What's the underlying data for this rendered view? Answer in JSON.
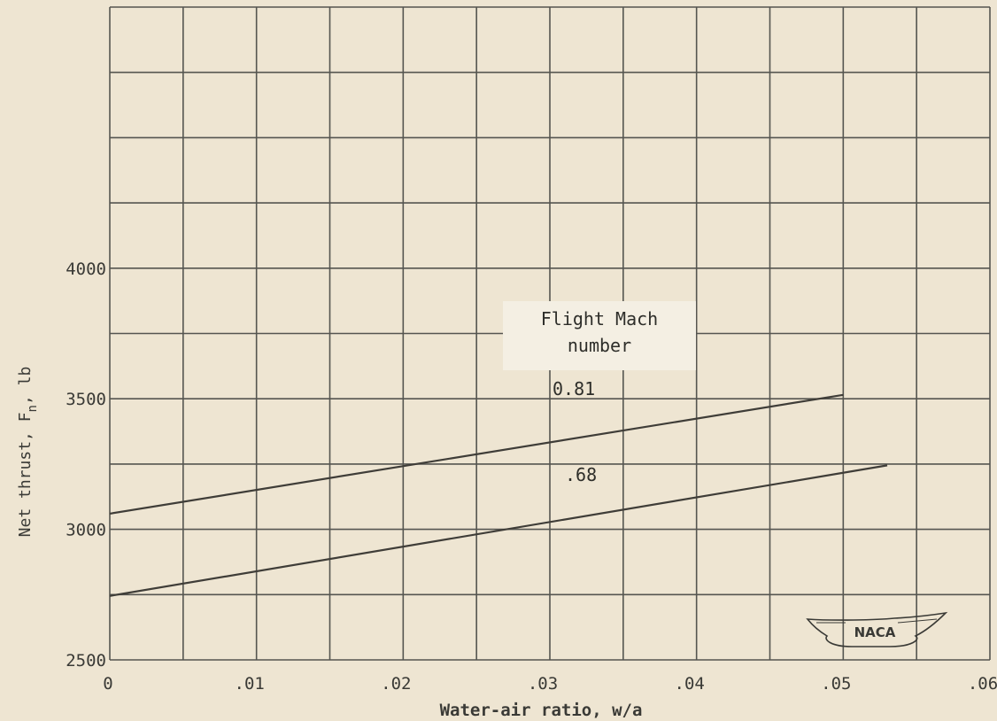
{
  "chart_data": {
    "type": "line",
    "title": "",
    "xlabel": "Water-air ratio, w/a",
    "ylabel_main": "Net thrust, F",
    "ylabel_sub": "n",
    "ylabel_unit": ", lb",
    "xlim": [
      0,
      0.06
    ],
    "ylim": [
      2500,
      5000
    ],
    "grid": true,
    "x_ticks": [
      0,
      0.01,
      0.02,
      0.03,
      0.04,
      0.05,
      0.06
    ],
    "x_tick_labels": [
      "0",
      ".01",
      ".02",
      ".03",
      ".04",
      ".05",
      ".06"
    ],
    "y_ticks": [
      2500,
      3000,
      3500,
      4000
    ],
    "y_tick_labels": [
      "2500",
      "3000",
      "3500",
      "4000"
    ],
    "legend_box": {
      "line1": "Flight Mach",
      "line2": "number"
    },
    "series": [
      {
        "name": "0.81",
        "label": "0.81",
        "x": [
          0,
          0.05
        ],
        "y": [
          3060,
          3515
        ]
      },
      {
        "name": ".68",
        "label": ".68",
        "x": [
          0,
          0.053
        ],
        "y": [
          2745,
          3245
        ]
      }
    ],
    "logo_text": "NACA"
  }
}
